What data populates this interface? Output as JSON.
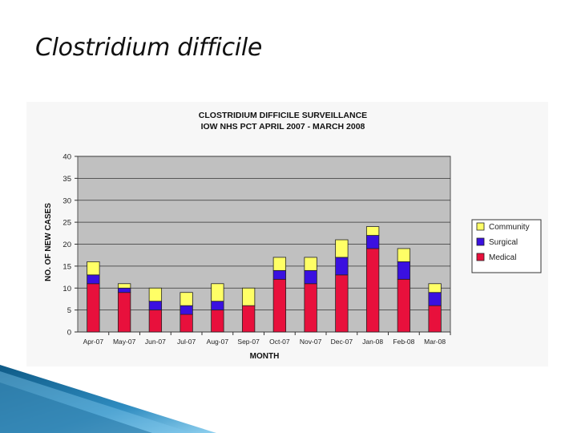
{
  "slide": {
    "title": "Clostridium difficile"
  },
  "chart_data": {
    "type": "bar",
    "stacked": true,
    "title": "CLOSTRIDIUM DIFFICILE SURVEILLANCE",
    "subtitle": "IOW NHS PCT APRIL 2007 - MARCH 2008",
    "xlabel": "MONTH",
    "ylabel": "NO. OF NEW CASES",
    "ylim": [
      0,
      40
    ],
    "yticks": [
      0,
      5,
      10,
      15,
      20,
      25,
      30,
      35,
      40
    ],
    "grid": true,
    "legend_position": "right",
    "categories": [
      "Apr-07",
      "May-07",
      "Jun-07",
      "Jul-07",
      "Aug-07",
      "Sep-07",
      "Oct-07",
      "Nov-07",
      "Dec-07",
      "Jan-08",
      "Feb-08",
      "Mar-08"
    ],
    "series": [
      {
        "name": "Medical",
        "color": "#e8103c",
        "values": [
          11,
          9,
          5,
          4,
          5,
          6,
          12,
          11,
          13,
          19,
          12,
          6
        ]
      },
      {
        "name": "Surgical",
        "color": "#3a10e0",
        "values": [
          2,
          1,
          2,
          2,
          2,
          0,
          2,
          3,
          4,
          3,
          4,
          3
        ]
      },
      {
        "name": "Community",
        "color": "#ffff66",
        "values": [
          3,
          1,
          3,
          3,
          4,
          4,
          3,
          3,
          4,
          2,
          3,
          2
        ]
      }
    ],
    "legend_order": [
      "Community",
      "Surgical",
      "Medical"
    ],
    "plot_background": "#c0c0c0"
  }
}
